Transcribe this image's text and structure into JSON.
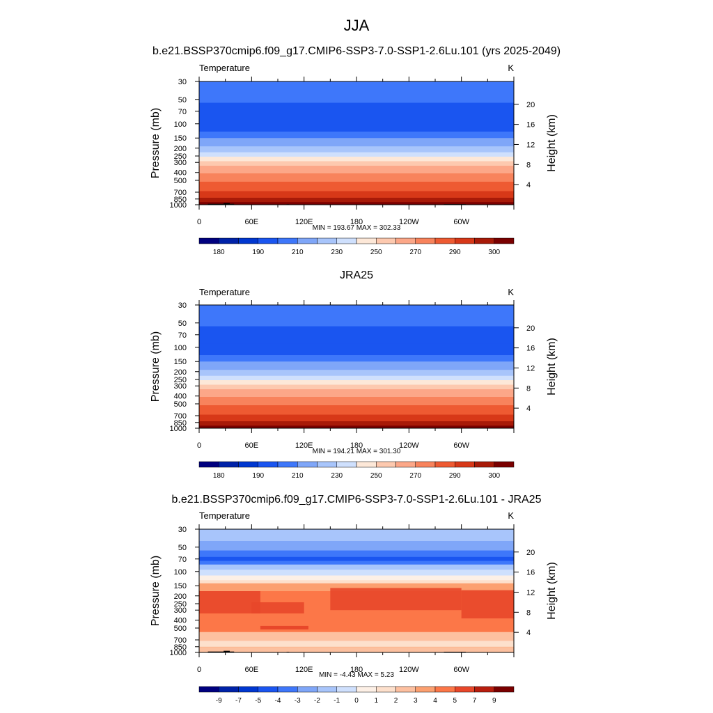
{
  "figure": {
    "title": "JJA"
  },
  "chart_data": [
    {
      "type": "heatmap",
      "title": "b.e21.BSSP370cmip6.f09_g17.CMIP6-SSP3-7.0-SSP1-2.6Lu.101 (yrs 2025-2049)",
      "variable_label": "Temperature",
      "units": "K",
      "ylabel_left": "Pressure (mb)",
      "ylabel_right": "Height (km)",
      "x_ticks": [
        "0",
        "60E",
        "120E",
        "180",
        "120W",
        "60W"
      ],
      "pressure_ticks": [
        "30",
        "50",
        "70",
        "100",
        "150",
        "200",
        "250",
        "300",
        "400",
        "500",
        "700",
        "850",
        "1000"
      ],
      "height_ticks": [
        "4",
        "8",
        "12",
        "16",
        "20"
      ],
      "stats": "MIN = 193.67  MAX = 302.33",
      "colorbar_labels": [
        "180",
        "190",
        "210",
        "230",
        "250",
        "270",
        "290",
        "300"
      ],
      "terrain": true
    },
    {
      "type": "heatmap",
      "title": "JRA25",
      "variable_label": "Temperature",
      "units": "K",
      "ylabel_left": "Pressure (mb)",
      "ylabel_right": "Height (km)",
      "x_ticks": [
        "0",
        "60E",
        "120E",
        "180",
        "120W",
        "60W"
      ],
      "pressure_ticks": [
        "30",
        "50",
        "70",
        "100",
        "150",
        "200",
        "250",
        "300",
        "400",
        "500",
        "700",
        "850",
        "1000"
      ],
      "height_ticks": [
        "4",
        "8",
        "12",
        "16",
        "20"
      ],
      "stats": "MIN = 194.21  MAX = 301.30",
      "colorbar_labels": [
        "180",
        "190",
        "210",
        "230",
        "250",
        "270",
        "290",
        "300"
      ],
      "terrain": false
    },
    {
      "type": "heatmap",
      "title": "b.e21.BSSP370cmip6.f09_g17.CMIP6-SSP3-7.0-SSP1-2.6Lu.101 - JRA25",
      "variable_label": "Temperature",
      "units": "K",
      "ylabel_left": "Pressure (mb)",
      "ylabel_right": "Height (km)",
      "x_ticks": [
        "0",
        "60E",
        "120E",
        "180",
        "120W",
        "60W"
      ],
      "pressure_ticks": [
        "30",
        "50",
        "70",
        "100",
        "150",
        "200",
        "250",
        "300",
        "400",
        "500",
        "700",
        "850",
        "1000"
      ],
      "height_ticks": [
        "4",
        "8",
        "12",
        "16",
        "20"
      ],
      "stats": "MIN =  -4.43  MAX =   5.23",
      "colorbar_labels": [
        "-9",
        "-7",
        "-5",
        "-4",
        "-3",
        "-2",
        "-1",
        "0",
        "1",
        "2",
        "3",
        "4",
        "5",
        "7",
        "9"
      ],
      "terrain": true
    }
  ],
  "colors": {
    "abs_scale": [
      "#00007f",
      "#0022a8",
      "#0037d0",
      "#1a55f0",
      "#3e77fa",
      "#7fa6f8",
      "#a8c5fb",
      "#cfe0fd",
      "#fde8d8",
      "#fdc9af",
      "#fca788",
      "#f8835c",
      "#ee5a32",
      "#d73818",
      "#a81a08",
      "#7a0000"
    ],
    "diff_scale": [
      "#00007f",
      "#0022a8",
      "#0037d0",
      "#1a55f0",
      "#3e77fa",
      "#7fa6f8",
      "#a8c5fb",
      "#cfe0fd",
      "#fdf0e6",
      "#fde0cc",
      "#fdc0a0",
      "#fca070",
      "#fc7748",
      "#e8472a",
      "#b81e0e",
      "#7a0000"
    ],
    "terrain": "#000000"
  }
}
